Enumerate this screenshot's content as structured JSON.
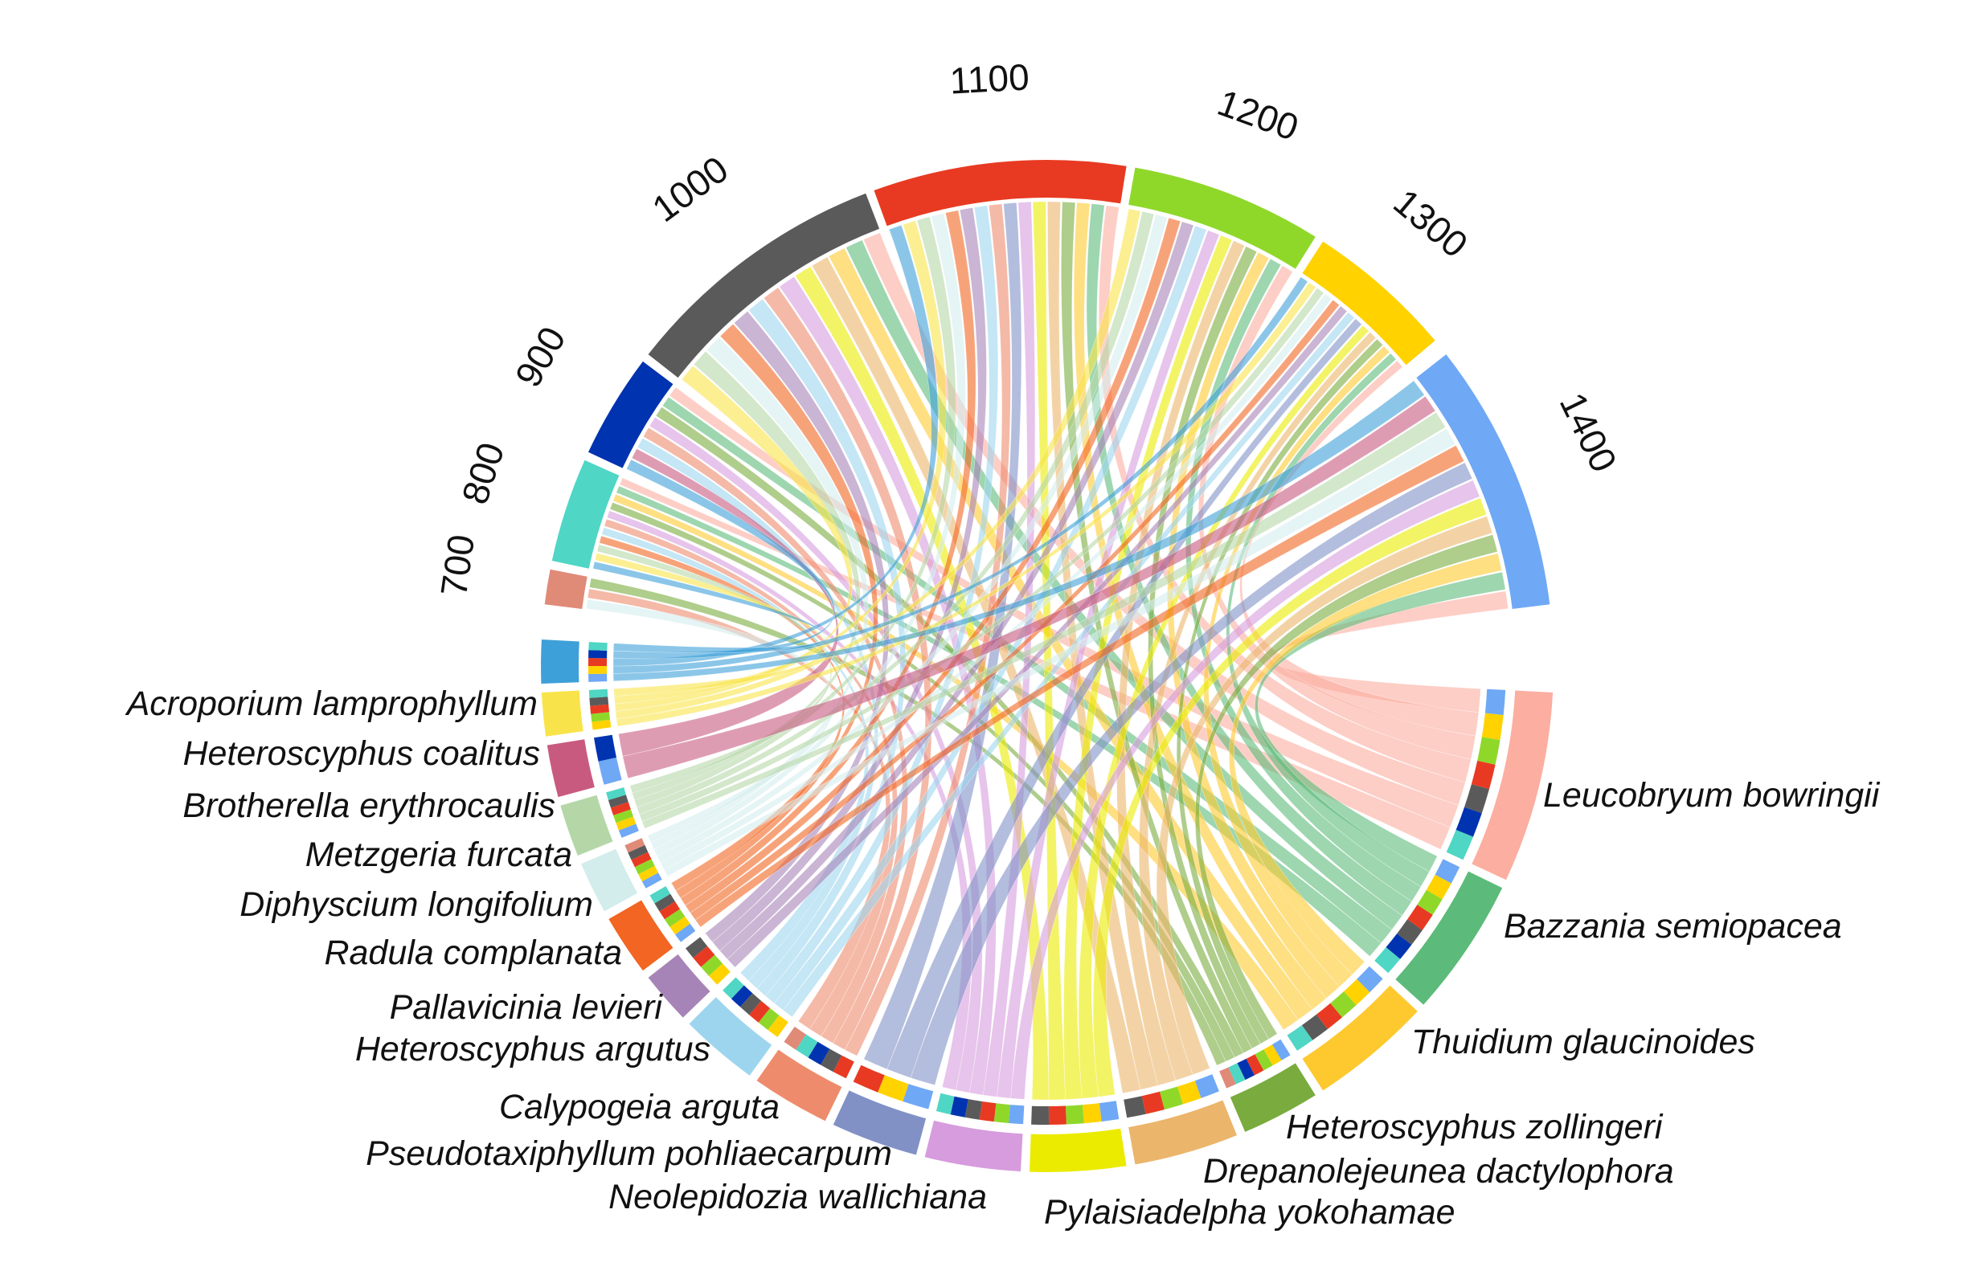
{
  "chart_data": {
    "type": "chord",
    "elevations": [
      {
        "label": "700",
        "color": "#e08a78"
      },
      {
        "label": "800",
        "color": "#4fd6c4"
      },
      {
        "label": "900",
        "color": "#0033b0"
      },
      {
        "label": "1000",
        "color": "#5a5a5a"
      },
      {
        "label": "1100",
        "color": "#e83a22"
      },
      {
        "label": "1200",
        "color": "#8fd82a"
      },
      {
        "label": "1300",
        "color": "#ffd200"
      },
      {
        "label": "1400",
        "color": "#6fa8f5"
      }
    ],
    "species": [
      {
        "label": "Leucobryum bowringii",
        "color": "#fcaea0",
        "links": [
          "1400",
          "1300",
          "1200",
          "1100",
          "1000",
          "900",
          "800"
        ]
      },
      {
        "label": "Bazzania semiopacea",
        "color": "#5cbb7a",
        "links": [
          "1400",
          "1300",
          "1200",
          "1100",
          "1000",
          "900",
          "800"
        ]
      },
      {
        "label": "Thuidium glaucinoides",
        "color": "#fdc92e",
        "links": [
          "1400",
          "1300",
          "1200",
          "1100",
          "1000",
          "800"
        ]
      },
      {
        "label": "Heteroscyphus zollingeri",
        "color": "#7aab3e",
        "links": [
          "1400",
          "1300",
          "1200",
          "1100",
          "900",
          "800",
          "700"
        ]
      },
      {
        "label": "Drepanolejeunea dactylophora",
        "color": "#ebb56b",
        "links": [
          "1400",
          "1300",
          "1200",
          "1100",
          "1000"
        ]
      },
      {
        "label": "Pylaisiadelpha yokohamae",
        "color": "#ebeb00",
        "links": [
          "1400",
          "1300",
          "1200",
          "1100",
          "1000"
        ]
      },
      {
        "label": "Neolepidozia wallichiana",
        "color": "#d79cdd",
        "links": [
          "1400",
          "1200",
          "1100",
          "1000",
          "900",
          "800"
        ]
      },
      {
        "label": "Pseudotaxiphyllum pohliaecarpum",
        "color": "#8191c6",
        "links": [
          "1400",
          "1300",
          "1100"
        ]
      },
      {
        "label": "Calypogeia arguta",
        "color": "#ee8b6c",
        "links": [
          "1100",
          "1000",
          "900",
          "800",
          "700"
        ]
      },
      {
        "label": "Heteroscyphus argutus",
        "color": "#9dd5ee",
        "links": [
          "1300",
          "1200",
          "1100",
          "1000",
          "900",
          "800"
        ]
      },
      {
        "label": "Pallavicinia levieri",
        "color": "#a784b8",
        "links": [
          "1300",
          "1200",
          "1100",
          "1000"
        ]
      },
      {
        "label": "Radula complanata",
        "color": "#f26522",
        "links": [
          "1400",
          "1300",
          "1200",
          "1100",
          "1000",
          "800"
        ]
      },
      {
        "label": "Diphyscium longifolium",
        "color": "#d3ecec",
        "links": [
          "1400",
          "1300",
          "1200",
          "1100",
          "1000",
          "700"
        ]
      },
      {
        "label": "Metzgeria furcata",
        "color": "#b5d7a8",
        "links": [
          "1400",
          "1300",
          "1200",
          "1100",
          "1000",
          "800"
        ]
      },
      {
        "label": "Brotherella erythrocaulis",
        "color": "#c85a80",
        "links": [
          "1400",
          "900"
        ]
      },
      {
        "label": "Heteroscyphus coalitus",
        "color": "#f8e44a",
        "links": [
          "1300",
          "1200",
          "1100",
          "1000",
          "800"
        ]
      },
      {
        "label": "Acroporium lamprophyllum",
        "color": "#3ea0d8",
        "links": [
          "1400",
          "1300",
          "1100",
          "900",
          "800"
        ]
      }
    ]
  }
}
